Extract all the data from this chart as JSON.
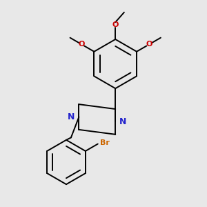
{
  "bg_color": "#e8e8e8",
  "bond_color": "#000000",
  "nitrogen_color": "#2222cc",
  "oxygen_color": "#cc0000",
  "bromine_color": "#cc6600",
  "line_width": 1.4,
  "figsize": [
    3.0,
    3.0
  ],
  "dpi": 100,
  "ome_labels": [
    "O",
    "O",
    "O"
  ],
  "br_label": "Br",
  "n_label": "N"
}
